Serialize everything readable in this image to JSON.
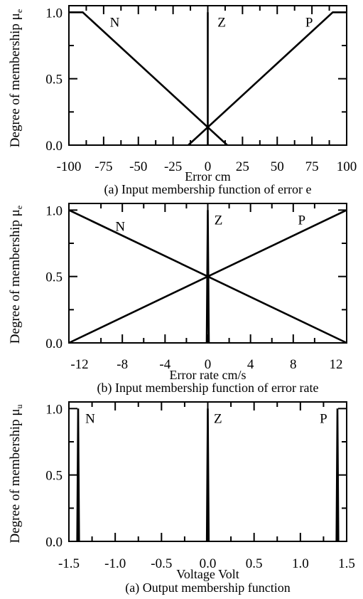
{
  "chart_data": [
    {
      "type": "line",
      "title": "",
      "ylabel": "Degree of membership μ",
      "ylabel_subscript": "e",
      "xlabel": "Error cm",
      "caption": "(a) Input membership function of error e",
      "xlim": [
        -100,
        100
      ],
      "ylim": [
        0,
        1.05
      ],
      "xticks": [
        -100,
        -75,
        -50,
        -25,
        0,
        25,
        50,
        75,
        100
      ],
      "xtick_labels": [
        "-100",
        "-75",
        "-50",
        "-25",
        "0",
        "25",
        "50",
        "75",
        "100"
      ],
      "xminor": [
        -87.5,
        -62.5,
        -37.5,
        -12.5,
        12.5,
        37.5,
        62.5,
        87.5
      ],
      "yticks": [
        0.0,
        0.5,
        1.0
      ],
      "ytick_labels": [
        "0.0",
        "0.5",
        "1.0"
      ],
      "yminor": [
        0.25,
        0.75
      ],
      "grid": false,
      "series": [
        {
          "name": "N",
          "x": [
            -100,
            -90,
            14
          ],
          "y": [
            1.0,
            1.0,
            0.0
          ]
        },
        {
          "name": "Z",
          "x": [
            0,
            0
          ],
          "y": [
            0.0,
            1.0
          ]
        },
        {
          "name": "P",
          "x": [
            -14,
            90,
            100
          ],
          "y": [
            0.0,
            1.0,
            1.0
          ]
        }
      ],
      "labels": [
        {
          "text": "N",
          "x": -67,
          "y": 0.93
        },
        {
          "text": "Z",
          "x": 10,
          "y": 0.93
        },
        {
          "text": "P",
          "x": 73,
          "y": 0.93
        }
      ]
    },
    {
      "type": "line",
      "title": "",
      "ylabel": "Degree of membership μ",
      "ylabel_subscript": "e",
      "xlabel": "Error rate cm/s",
      "caption": "(b) Input membership function of error rate",
      "xlim": [
        -13,
        13
      ],
      "ylim": [
        0,
        1.05
      ],
      "xticks": [
        -12,
        -8,
        -4,
        0,
        4,
        8,
        12
      ],
      "xtick_labels": [
        "-12",
        "-8",
        "-4",
        "0",
        "4",
        "8",
        "12"
      ],
      "xminor": [
        -10,
        -6,
        -2,
        2,
        6,
        10
      ],
      "yticks": [
        0.0,
        0.5,
        1.0
      ],
      "ytick_labels": [
        "0.0",
        "0.5",
        "1.0"
      ],
      "yminor": [
        0.25,
        0.75
      ],
      "grid": false,
      "series": [
        {
          "name": "N",
          "x": [
            -13,
            13
          ],
          "y": [
            1.0,
            0.0
          ]
        },
        {
          "name": "Z",
          "x": [
            -0.1,
            0,
            0.1
          ],
          "y": [
            0.0,
            1.0,
            0.0
          ]
        },
        {
          "name": "P",
          "x": [
            -13,
            13
          ],
          "y": [
            0.0,
            1.0
          ]
        }
      ],
      "labels": [
        {
          "text": "N",
          "x": -8.2,
          "y": 0.88
        },
        {
          "text": "Z",
          "x": 1.0,
          "y": 0.93
        },
        {
          "text": "P",
          "x": 8.8,
          "y": 0.93
        }
      ]
    },
    {
      "type": "line",
      "title": "",
      "ylabel": "Degree of membership μ",
      "ylabel_subscript": "u",
      "xlabel": "Voltage Volt",
      "caption": "(a) Output membership function",
      "xlim": [
        -1.5,
        1.5
      ],
      "ylim": [
        0,
        1.05
      ],
      "xticks": [
        -1.5,
        -1.0,
        -0.5,
        0.0,
        0.5,
        1.0,
        1.5
      ],
      "xtick_labels": [
        "-1.5",
        "-1.0",
        "-0.5",
        "0.0",
        "0.5",
        "1.0",
        "1.5"
      ],
      "xminor": [
        -1.25,
        -0.75,
        -0.25,
        0.25,
        0.75,
        1.25
      ],
      "yticks": [
        0.0,
        0.5,
        1.0
      ],
      "ytick_labels": [
        "0.0",
        "0.5",
        "1.0"
      ],
      "yminor": [
        0.25,
        0.75
      ],
      "grid": false,
      "series": [
        {
          "name": "N",
          "x": [
            -1.41,
            -1.4,
            -1.39
          ],
          "y": [
            0.0,
            1.0,
            0.0
          ]
        },
        {
          "name": "Z",
          "x": [
            -0.01,
            0.0,
            0.01
          ],
          "y": [
            0.0,
            1.0,
            0.0
          ]
        },
        {
          "name": "P",
          "x": [
            1.39,
            1.4,
            1.41
          ],
          "y": [
            0.0,
            1.0,
            0.0
          ]
        }
      ],
      "labels": [
        {
          "text": "N",
          "x": -1.27,
          "y": 0.93
        },
        {
          "text": "Z",
          "x": 0.11,
          "y": 0.93
        },
        {
          "text": "P",
          "x": 1.25,
          "y": 0.93
        }
      ]
    }
  ]
}
